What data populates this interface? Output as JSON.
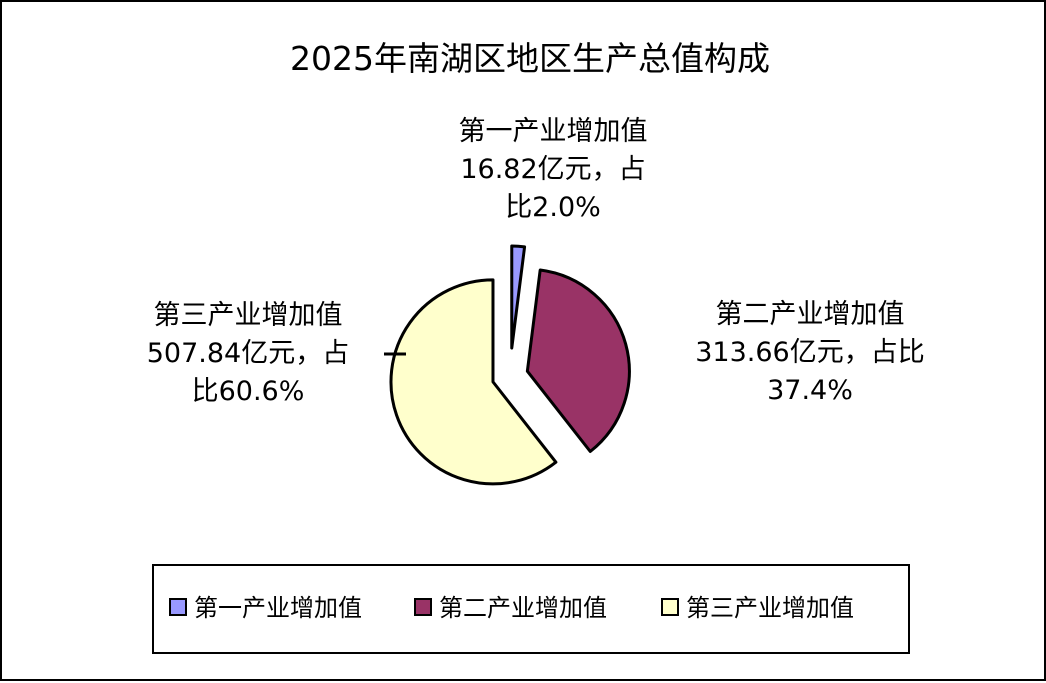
{
  "chart_data": {
    "type": "pie",
    "title": "2025年南湖区地区生产总值构成",
    "categories": [
      "第一产业增加值",
      "第二产业增加值",
      "第三产业增加值"
    ],
    "values": [
      16.82,
      313.66,
      507.84
    ],
    "percentages": [
      2.0,
      37.4,
      60.6
    ],
    "unit": "亿元",
    "colors": [
      "#9999FF",
      "#993366",
      "#FFFFCC"
    ],
    "exploded": true,
    "data_labels": [
      {
        "lines": [
          "第一产业增加值",
          "16.82亿元，占",
          "比2.0%"
        ]
      },
      {
        "lines": [
          "第二产业增加值",
          "313.66亿元，占比",
          "37.4%"
        ]
      },
      {
        "lines": [
          "第三产业增加值",
          "507.84亿元，占",
          "比60.6%"
        ]
      }
    ],
    "legend": {
      "position": "bottom",
      "entries": [
        "第一产业增加值",
        "第二产业增加值",
        "第三产业增加值"
      ]
    }
  }
}
